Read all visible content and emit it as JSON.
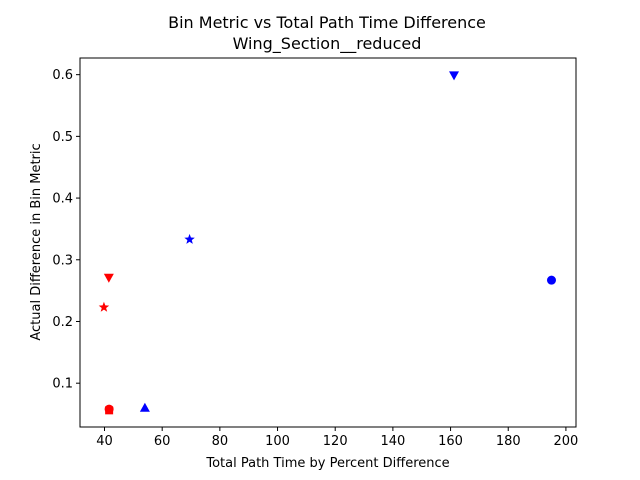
{
  "chart_data": {
    "type": "scatter",
    "title": "Bin Metric vs Total Path Time Difference",
    "subtitle": "Wing_Section__reduced",
    "xlabel": "Total Path Time by Percent Difference",
    "ylabel": "Actual Difference in Bin Metric",
    "xlim": [
      31.5,
      203.5
    ],
    "ylim": [
      0.029,
      0.627
    ],
    "xticks": [
      40,
      60,
      80,
      100,
      120,
      140,
      160,
      180,
      200
    ],
    "yticks": [
      0.1,
      0.2,
      0.3,
      0.4,
      0.5,
      0.6
    ],
    "grid": false,
    "legend": "none",
    "points": [
      {
        "x": 161.2,
        "y": 0.598,
        "marker": "triangle-down",
        "color": "#0000ff"
      },
      {
        "x": 69.5,
        "y": 0.333,
        "marker": "star",
        "color": "#0000ff"
      },
      {
        "x": 195.0,
        "y": 0.267,
        "marker": "circle",
        "color": "#0000ff"
      },
      {
        "x": 54.0,
        "y": 0.061,
        "marker": "triangle-up",
        "color": "#0000ff"
      },
      {
        "x": 41.5,
        "y": 0.27,
        "marker": "triangle-down",
        "color": "#ff0000"
      },
      {
        "x": 39.8,
        "y": 0.223,
        "marker": "star",
        "color": "#ff0000"
      },
      {
        "x": 41.6,
        "y": 0.058,
        "marker": "circle",
        "color": "#ff0000"
      },
      {
        "x": 41.6,
        "y": 0.056,
        "marker": "square",
        "color": "#ff0000"
      }
    ]
  }
}
